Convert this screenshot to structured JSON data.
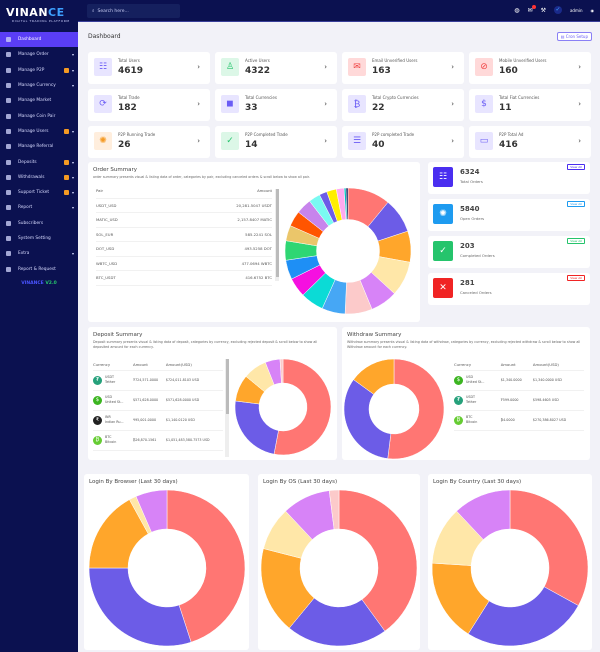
{
  "brand": {
    "name_a": "VINAN",
    "name_b": "CE",
    "tagline": "DIGITAL TRADING PLATFORM",
    "version_a": "VINANCE",
    "version_b": "V2.0"
  },
  "sidebar": {
    "items": [
      {
        "label": "Dashboard",
        "active": true
      },
      {
        "label": "Manage Order",
        "chevron": true
      },
      {
        "label": "Manage P2P",
        "badge": true,
        "chevron": true
      },
      {
        "label": "Manage Currency",
        "chevron": true
      },
      {
        "label": "Manage Market"
      },
      {
        "label": "Manage Coin Pair"
      },
      {
        "label": "Manage Users",
        "badge": true,
        "chevron": true
      },
      {
        "label": "Manage Referral"
      },
      {
        "label": "Deposits",
        "badge": true,
        "chevron": true
      },
      {
        "label": "Withdrawals",
        "badge": true,
        "chevron": true
      },
      {
        "label": "Support Ticket",
        "badge": true,
        "chevron": true
      },
      {
        "label": "Report",
        "chevron": true
      },
      {
        "label": "Subscribers"
      },
      {
        "label": "System Setting"
      },
      {
        "label": "Extra",
        "chevron": true
      },
      {
        "label": "Report & Request"
      }
    ]
  },
  "header": {
    "search_placeholder": "Search here...",
    "username": "admin"
  },
  "page": {
    "title": "Dashboard",
    "cron_label": "Cron Setup"
  },
  "stats": [
    {
      "label": "Total Users",
      "value": "4619",
      "icon": "users-icon",
      "color": "#6a5cf5",
      "bg": "#e8e5ff"
    },
    {
      "label": "Active Users",
      "value": "4322",
      "icon": "user-check-icon",
      "color": "#25c46c",
      "bg": "#dcf7e7"
    },
    {
      "label": "Email Unverified Users",
      "value": "163",
      "icon": "envelope-icon",
      "color": "#f04444",
      "bg": "#ffd9d9"
    },
    {
      "label": "Mobile Unverified Users",
      "value": "160",
      "icon": "mobile-off-icon",
      "color": "#f04444",
      "bg": "#ffd9d9"
    },
    {
      "label": "Total Trade",
      "value": "182",
      "icon": "refresh-icon",
      "color": "#6a5cf5",
      "bg": "#e8e5ff"
    },
    {
      "label": "Total Currencies",
      "value": "33",
      "icon": "coins-icon",
      "color": "#6a5cf5",
      "bg": "#e8e5ff"
    },
    {
      "label": "Total Crypto Currencies",
      "value": "22",
      "icon": "bitcoin-icon",
      "color": "#6a5cf5",
      "bg": "#e8e5ff"
    },
    {
      "label": "Total Fiat Currencies",
      "value": "11",
      "icon": "dollar-icon",
      "color": "#6a5cf5",
      "bg": "#e8e5ff"
    },
    {
      "label": "P2P Running Trade",
      "value": "26",
      "icon": "spinner-icon",
      "color": "#f59a23",
      "bg": "#ffeedd"
    },
    {
      "label": "P2P Completed Trade",
      "value": "14",
      "icon": "check-circle-icon",
      "color": "#25c46c",
      "bg": "#dcf7e7"
    },
    {
      "label": "P2P completed Trade",
      "value": "40",
      "icon": "list-icon",
      "color": "#6a5cf5",
      "bg": "#e8e5ff"
    },
    {
      "label": "P2P Total Ad",
      "value": "416",
      "icon": "ad-icon",
      "color": "#6a5cf5",
      "bg": "#e8e5ff"
    }
  ],
  "order_summary": {
    "title": "Order Summary",
    "description": "order summary presents visual & listing data of order, categories by pair, excluding canceled orders & scroll below to show all pair.",
    "columns": [
      "Pair",
      "Amount"
    ],
    "rows": [
      [
        "USDT_USD",
        "20,281.5047 USDT"
      ],
      [
        "MATIC_USD",
        "2,157.8407 MATIC"
      ],
      [
        "SOL_EUR",
        "585.2241 SOL"
      ],
      [
        "DOT_USD",
        "493.5258 DOT"
      ],
      [
        "WBTC_USD",
        "477.0694 WBTC"
      ],
      [
        "BTC_USDT",
        "416.6752 BTC"
      ]
    ]
  },
  "order_status": [
    {
      "value": "6324",
      "label": "Total Orders",
      "link": "View All",
      "color": "#4a2ef0",
      "icon": "checklist-icon"
    },
    {
      "value": "5840",
      "label": "Open Orders",
      "link": "View All",
      "color": "#1e9bf0",
      "icon": "spinner-icon"
    },
    {
      "value": "203",
      "label": "Completed Orders",
      "link": "View All",
      "color": "#25c46c",
      "icon": "check-circle-icon"
    },
    {
      "value": "281",
      "label": "Canceled Orders",
      "link": "View All",
      "color": "#f02424",
      "icon": "x-circle-icon"
    }
  ],
  "deposit_summary": {
    "title": "Deposit Summary",
    "description": "Deposit summary presents visual & listing data of deposit, categories by currency, excluding rejected deposit & scroll below to show all deposited amount for each currency.",
    "columns": [
      "Currency",
      "Amount",
      "Amount(USD)"
    ],
    "rows": [
      {
        "code": "USDT",
        "name": "Tether",
        "amount": "₮724,571.0000",
        "usd": "$724,011.8103 USD",
        "icon": "tether-icon",
        "color": "#26a17b"
      },
      {
        "code": "USD",
        "name": "United St...",
        "amount": "$571,628.0000",
        "usd": "$571,628.0000 USD",
        "icon": "dollar-icon",
        "color": "#3cb521"
      },
      {
        "code": "INR",
        "name": "Indian Ru...",
        "amount": "₹95,001.0000",
        "usd": "$1,140.0120 USD",
        "icon": "rupee-icon",
        "color": "#222222"
      },
      {
        "code": "BTC",
        "name": "Bitcoin",
        "amount": "₿26,870.1561",
        "usd": "$1,051,483,580.7573 USD",
        "icon": "bitcoin-icon",
        "color": "#66cc33"
      }
    ]
  },
  "withdraw_summary": {
    "title": "Withdraw Summary",
    "description": "Withdraw summary presents visual & listing data of withdraw, categories by currency, excluding rejected withdraw & scroll below to show all Withdraw amount for each currency.",
    "columns": [
      "Currency",
      "Amount",
      "Amount(USD)"
    ],
    "rows": [
      {
        "code": "USD",
        "name": "United St...",
        "amount": "$1,340.0000",
        "usd": "$1,340.0000 USD",
        "icon": "dollar-icon",
        "color": "#3cb521"
      },
      {
        "code": "USDT",
        "name": "Tether",
        "amount": "₮599.0000",
        "usd": "$598.4605 USD",
        "icon": "tether-icon",
        "color": "#26a17b"
      },
      {
        "code": "BTC",
        "name": "Bitcoin",
        "amount": "₿4.0000",
        "usd": "$270,386.8027 USD",
        "icon": "bitcoin-icon",
        "color": "#66cc33"
      }
    ]
  },
  "login_charts": {
    "browser_title": "Login By Browser (Last 30 days)",
    "os_title": "Login By OS (Last 30 days)",
    "country_title": "Login By Country (Last 30 days)"
  },
  "chart_data": [
    {
      "type": "pie",
      "id": "order",
      "values": [
        11,
        9,
        8,
        9,
        7,
        7,
        6,
        6,
        5,
        5,
        5,
        4,
        4,
        4,
        3,
        2,
        2.5,
        2,
        0.5,
        0.5
      ],
      "colors": [
        "#ff7673",
        "#6c5ce7",
        "#ffa62b",
        "#ffe7a8",
        "#d783f7",
        "#fccaca",
        "#46a7f5",
        "#0bdbd6",
        "#f510e0",
        "#1e8ff5",
        "#2ed673",
        "#ebc66a",
        "#ff5500",
        "#c784ec",
        "#7afaf2",
        "#6c5ce7",
        "#ffee00",
        "#ffaaf0",
        "#00c0c0",
        "#0b1150"
      ]
    },
    {
      "type": "pie",
      "id": "deposit",
      "values": [
        53,
        24,
        9,
        8,
        5,
        1
      ],
      "colors": [
        "#ff7673",
        "#6c5ce7",
        "#ffa62b",
        "#ffe7a8",
        "#d783f7",
        "#fccaca"
      ]
    },
    {
      "type": "pie",
      "id": "withdraw",
      "values": [
        52,
        33,
        15
      ],
      "colors": [
        "#ff7673",
        "#6c5ce7",
        "#ffa62b"
      ]
    },
    {
      "type": "pie",
      "id": "browser",
      "values": [
        45,
        30,
        17,
        1.5,
        6.5
      ],
      "colors": [
        "#ff7673",
        "#6c5ce7",
        "#ffa62b",
        "#ffe7a8",
        "#d783f7"
      ]
    },
    {
      "type": "pie",
      "id": "os",
      "values": [
        40,
        21,
        18,
        9,
        10,
        2
      ],
      "colors": [
        "#ff7673",
        "#6c5ce7",
        "#ffa62b",
        "#ffe7a8",
        "#d783f7",
        "#fccaca"
      ]
    },
    {
      "type": "pie",
      "id": "country",
      "values": [
        33,
        26,
        17,
        12,
        12
      ],
      "colors": [
        "#ff7673",
        "#6c5ce7",
        "#ffa62b",
        "#ffe7a8",
        "#d783f7"
      ]
    }
  ]
}
